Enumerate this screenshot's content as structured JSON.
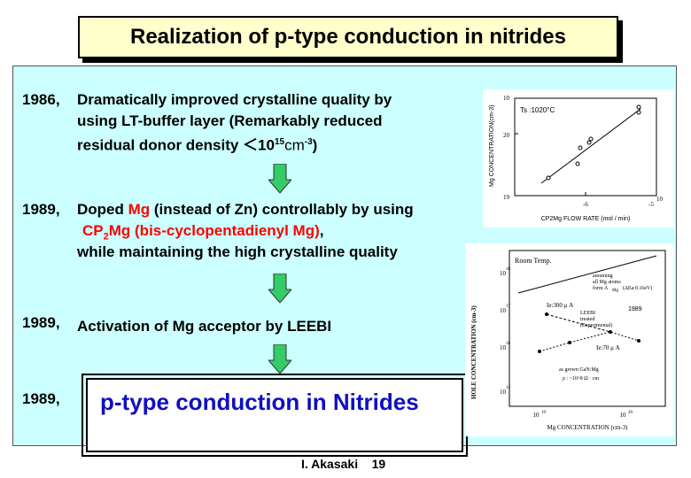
{
  "title": "Realization of p-type conduction in nitrides",
  "items": [
    {
      "year": "1986,",
      "line1": "Dramatically improved crystalline quality by",
      "line2": "using LT-buffer layer (Remarkably reduced",
      "line3_prefix": "residual donor density ＜10",
      "line3_sup": "15",
      "line3_unit": "cm",
      "line3_unit_sup": "-3",
      "line3_suffix": ")"
    },
    {
      "year": "1989,",
      "line1_a": "Doped ",
      "line1_mg": "Mg",
      "line1_b": " (instead of Zn) controllably by using",
      "line2_cp": "CP",
      "line2_sub": "2",
      "line2_rest": "Mg (bis-cyclopentadienyl Mg)",
      "line2_comma": ",",
      "line3": "while maintaining the high crystalline quality"
    },
    {
      "year": "1989,",
      "text_a": "Activation of Mg acceptor by ",
      "text_b": "LEEBI"
    },
    {
      "year": "1989,",
      "result": "p-type conduction in Nitrides"
    }
  ],
  "figure1": {
    "ylabel": "Mg CONCENTRATION(cm-3)",
    "xlabel": "CP2Mg FLOW RATE (mol / min)",
    "annotation": "Ts :1020°C",
    "y_ticks": [
      "10^19",
      "10^20"
    ],
    "x_ticks": [
      "10^-6",
      "10^-5"
    ],
    "chart_data": {
      "type": "scatter",
      "xscale": "log",
      "yscale": "log",
      "points": [
        [
          2e-07,
          1.5e+19
        ],
        [
          5e-07,
          3e+19
        ],
        [
          7e-07,
          5e+19
        ],
        [
          8e-07,
          5.5e+19
        ],
        [
          1e-06,
          7e+19
        ],
        [
          3e-06,
          1.5e+20
        ],
        [
          3.5e-06,
          2e+20
        ]
      ]
    }
  },
  "figure2": {
    "ylabel": "HOLE CONCENTRATION (cm-3)",
    "xlabel": "Mg CONCENTRATION (cm-3)",
    "room_temp": "Room Temp.",
    "assuming": [
      "assuming",
      "all Mg atoms",
      "form A",
      "Mg",
      "(ΔEa:0.16eV)"
    ],
    "ie300": "Ie:300 μ A",
    "year_tag": "1989",
    "leebi": [
      "LEEBI",
      "treated",
      "(Experimental)"
    ],
    "ie70": "Ie:70 μ A",
    "asgrown": [
      "as grown GaN:Mg",
      "ρ : ~10^8 Ω · cm"
    ],
    "y_ticks": [
      "10^18",
      "10^17",
      "10^16",
      "10^15"
    ],
    "x_ticks": [
      "10^19",
      "10^20"
    ]
  },
  "footer": "I. Akasaki    19"
}
